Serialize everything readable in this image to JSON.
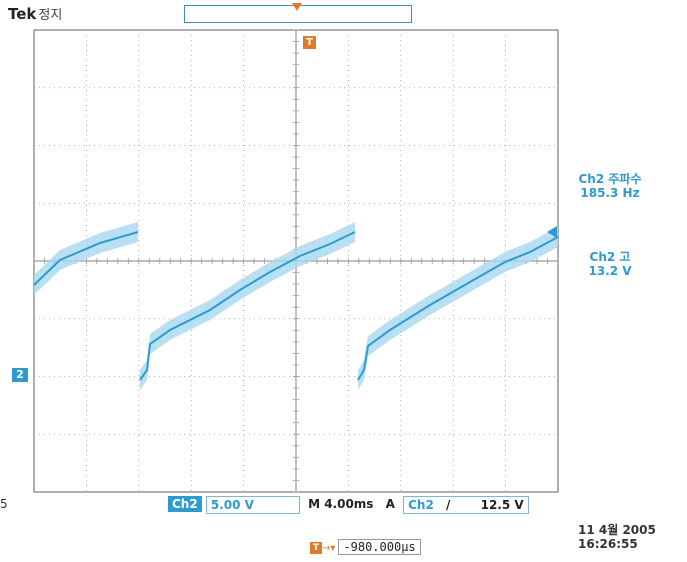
{
  "header": {
    "brand": "Tek",
    "status": "정지"
  },
  "markers": {
    "trigger_point": "T",
    "channel": "2"
  },
  "measurements": [
    {
      "title": "Ch2 주파수",
      "value": "185.3 Hz"
    },
    {
      "title": "Ch2 고",
      "value": "13.2 V"
    }
  ],
  "bottom_bar": {
    "channel": "Ch2",
    "volts_per_div": "5.00 V",
    "timebase": "M 4.00ms",
    "acq_mode": "A",
    "trig_channel": "Ch2",
    "trig_slope": "/",
    "trig_level": "12.5 V"
  },
  "delay": {
    "value": "-980.000µs"
  },
  "datetime": {
    "date": "11 4월 2005",
    "time": "16:26:55"
  },
  "left_fragment": "5",
  "colors": {
    "trace": "#2d9ad0",
    "trace_fill": "#a8d8ef",
    "grid": "#9a9a9a",
    "marker_orange": "#e07a2a"
  }
}
